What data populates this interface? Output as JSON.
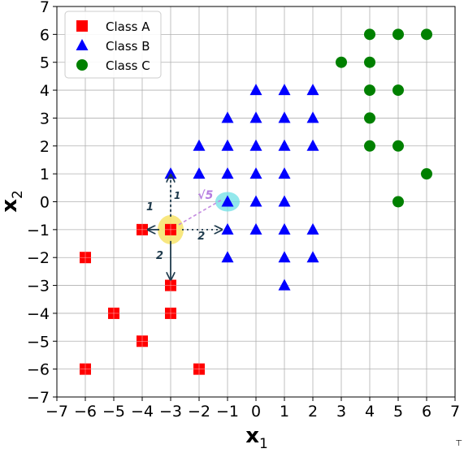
{
  "chart_data": {
    "type": "scatter",
    "xlabel_main": "x",
    "xlabel_sub": "1",
    "ylabel_main": "x",
    "ylabel_sub": "2",
    "xlim": [
      -7,
      7
    ],
    "ylim": [
      -7,
      7
    ],
    "xticks": [
      -7,
      -6,
      -5,
      -4,
      -3,
      -2,
      -1,
      0,
      1,
      2,
      3,
      4,
      5,
      6,
      7
    ],
    "yticks": [
      -7,
      -6,
      -5,
      -4,
      -3,
      -2,
      -1,
      0,
      1,
      2,
      3,
      4,
      5,
      6,
      7
    ],
    "grid": true,
    "legend_position": "top-left",
    "series": [
      {
        "name": "Class A",
        "marker": "square",
        "color": "#ff0000",
        "points": [
          [
            -6,
            -2
          ],
          [
            -5,
            -4
          ],
          [
            -4,
            -1
          ],
          [
            -4,
            -5
          ],
          [
            -3,
            -1
          ],
          [
            -3,
            -3
          ],
          [
            -3,
            -4
          ],
          [
            -6,
            -6
          ],
          [
            -2,
            -6
          ]
        ]
      },
      {
        "name": "Class B",
        "marker": "triangle",
        "color": "#0000ff",
        "points": [
          [
            0,
            4
          ],
          [
            1,
            4
          ],
          [
            2,
            4
          ],
          [
            -1,
            3
          ],
          [
            0,
            3
          ],
          [
            1,
            3
          ],
          [
            2,
            3
          ],
          [
            -2,
            2
          ],
          [
            -1,
            2
          ],
          [
            0,
            2
          ],
          [
            1,
            2
          ],
          [
            2,
            2
          ],
          [
            -3,
            1
          ],
          [
            -2,
            1
          ],
          [
            -1,
            1
          ],
          [
            0,
            1
          ],
          [
            1,
            1
          ],
          [
            -1,
            0
          ],
          [
            0,
            0
          ],
          [
            1,
            0
          ],
          [
            -1,
            -1
          ],
          [
            0,
            -1
          ],
          [
            1,
            -1
          ],
          [
            2,
            -1
          ],
          [
            -1,
            -2
          ],
          [
            1,
            -2
          ],
          [
            2,
            -2
          ],
          [
            1,
            -3
          ]
        ]
      },
      {
        "name": "Class C",
        "marker": "circle",
        "color": "#008000",
        "points": [
          [
            4,
            6
          ],
          [
            5,
            6
          ],
          [
            6,
            6
          ],
          [
            3,
            5
          ],
          [
            4,
            5
          ],
          [
            4,
            4
          ],
          [
            5,
            4
          ],
          [
            4,
            3
          ],
          [
            4,
            2
          ],
          [
            5,
            2
          ],
          [
            6,
            1
          ],
          [
            5,
            0
          ]
        ]
      }
    ],
    "annotations": {
      "highlight_yellow": [
        -3,
        -1
      ],
      "highlight_cyan": [
        -1,
        0
      ],
      "arrow_up_label": "1",
      "arrow_right_label": "2",
      "arrow_down_label": "2",
      "arrow_left_label": "1",
      "diagonal_label": "√5"
    }
  },
  "cursor_glyph": "⊤"
}
